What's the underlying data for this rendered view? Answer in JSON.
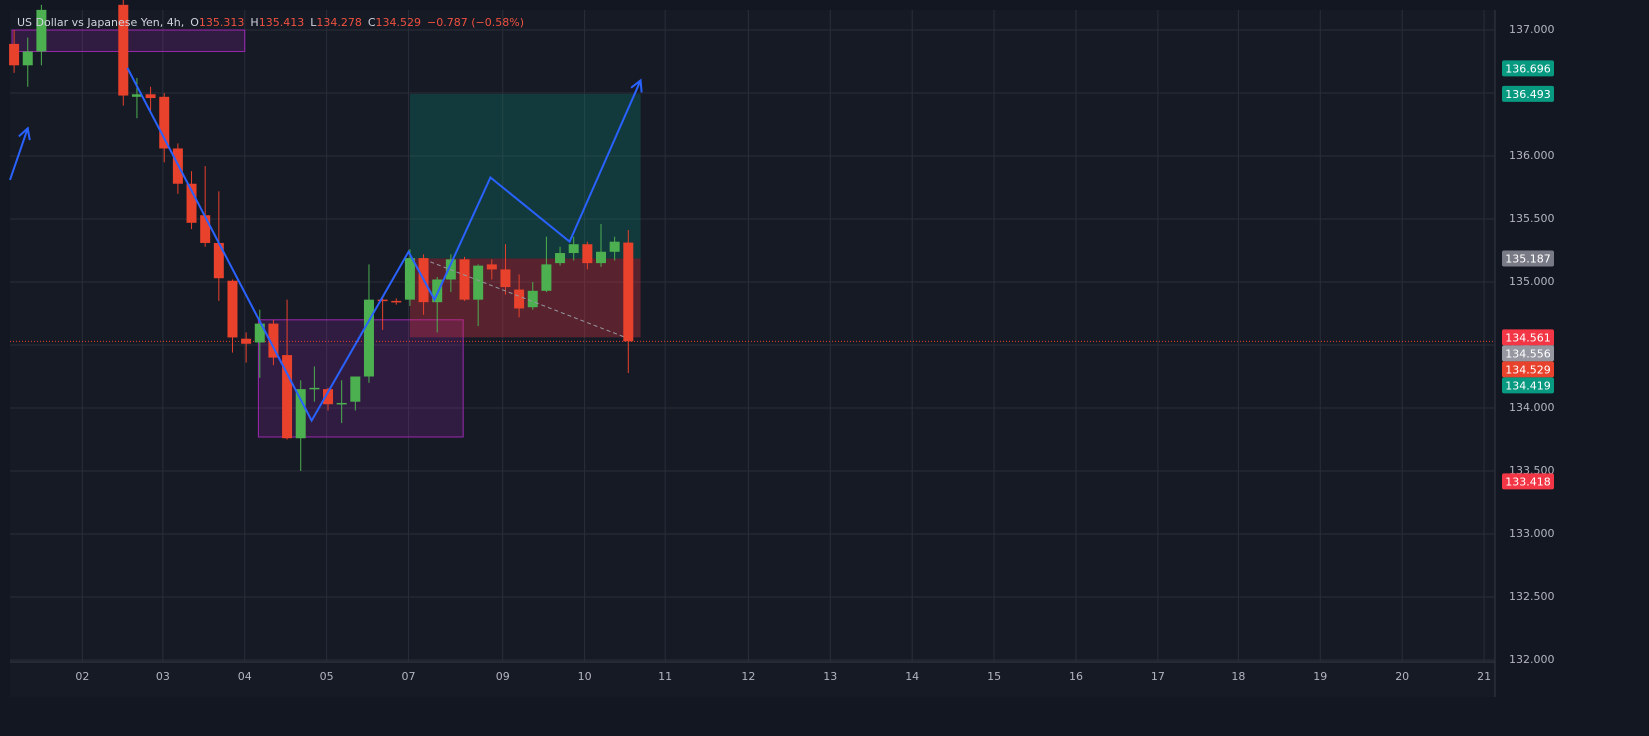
{
  "chart_data": {
    "type": "candlestick",
    "title": "US Dollar vs Japanese Yen, 4h,",
    "ohlc_legend": [
      {
        "label": "O",
        "value": 135.313
      },
      {
        "label": "H",
        "value": 135.413
      },
      {
        "label": "L",
        "value": 134.278
      },
      {
        "label": "C",
        "value": 134.529
      }
    ],
    "change": "−0.787 (−0.58%)",
    "x": [
      0,
      1,
      2,
      8,
      9,
      10,
      11,
      12,
      13,
      14,
      15,
      16,
      17,
      18,
      19,
      20,
      21,
      22,
      23,
      24,
      25,
      26,
      27,
      28,
      29,
      30,
      31,
      32,
      33,
      34,
      35,
      36,
      37,
      38,
      39,
      40,
      41,
      42,
      43,
      44,
      45
    ],
    "open": [
      136.89,
      136.72,
      136.83,
      137.2,
      136.47,
      136.49,
      136.47,
      136.06,
      135.78,
      135.53,
      135.31,
      135.01,
      134.55,
      134.52,
      134.67,
      134.42,
      133.76,
      134.15,
      134.15,
      134.03,
      134.05,
      134.25,
      134.86,
      134.85,
      134.86,
      135.19,
      134.84,
      135.02,
      135.18,
      134.86,
      135.14,
      135.1,
      134.94,
      134.8,
      134.93,
      135.15,
      135.23,
      135.3,
      135.15,
      135.24,
      135.313
    ],
    "high": [
      137.0,
      136.94,
      137.2,
      137.3,
      136.62,
      136.55,
      136.5,
      136.1,
      135.88,
      135.92,
      135.72,
      135.02,
      134.6,
      134.78,
      134.7,
      134.86,
      134.22,
      134.33,
      134.16,
      134.22,
      134.25,
      135.14,
      134.88,
      134.87,
      135.26,
      135.22,
      135.04,
      135.22,
      135.2,
      135.14,
      135.18,
      135.3,
      135.06,
      135.0,
      135.36,
      135.28,
      135.36,
      135.32,
      135.46,
      135.36,
      135.413
    ],
    "low": [
      136.66,
      136.55,
      136.72,
      136.4,
      136.3,
      136.36,
      135.95,
      135.7,
      135.42,
      135.28,
      134.85,
      134.44,
      134.36,
      134.24,
      134.34,
      133.75,
      133.5,
      134.05,
      133.98,
      133.88,
      133.98,
      134.2,
      134.62,
      134.82,
      134.81,
      134.74,
      134.6,
      134.92,
      134.85,
      134.65,
      135.02,
      134.9,
      134.72,
      134.78,
      134.92,
      135.13,
      135.17,
      135.1,
      135.12,
      135.17,
      134.278
    ],
    "close": [
      136.72,
      136.83,
      137.16,
      136.48,
      136.49,
      136.46,
      136.06,
      135.78,
      135.47,
      135.31,
      135.03,
      134.56,
      134.51,
      134.67,
      134.4,
      133.76,
      134.15,
      134.16,
      134.03,
      134.04,
      134.25,
      134.86,
      134.85,
      134.84,
      135.19,
      134.84,
      135.02,
      135.18,
      134.86,
      135.13,
      135.1,
      134.96,
      134.79,
      134.93,
      135.14,
      135.23,
      135.3,
      135.15,
      135.24,
      135.32,
      134.529
    ],
    "colors": {
      "up": "#4caf50",
      "down": "#e8412c"
    },
    "xlim": [
      -0.3,
      108.5
    ],
    "xticks": [
      {
        "value": 5,
        "label": "02"
      },
      {
        "value": 10.9,
        "label": "03"
      },
      {
        "value": 16.9,
        "label": "04"
      },
      {
        "value": 22.9,
        "label": "05"
      },
      {
        "value": 28.9,
        "label": "07"
      },
      {
        "value": 35.8,
        "label": "09"
      },
      {
        "value": 41.8,
        "label": "10"
      },
      {
        "value": 47.7,
        "label": "11"
      },
      {
        "value": 53.8,
        "label": "12"
      },
      {
        "value": 59.8,
        "label": "13"
      },
      {
        "value": 65.8,
        "label": "14"
      },
      {
        "value": 71.8,
        "label": "15"
      },
      {
        "value": 77.8,
        "label": "16"
      },
      {
        "value": 83.8,
        "label": "17"
      },
      {
        "value": 89.7,
        "label": "18"
      },
      {
        "value": 95.7,
        "label": "19"
      },
      {
        "value": 101.7,
        "label": "20"
      },
      {
        "value": 107.7,
        "label": "21"
      }
    ],
    "ylim": [
      131.984,
      137.159
    ],
    "yticks": [
      {
        "value": 132,
        "label": "132.000"
      },
      {
        "value": 132.5,
        "label": "132.500"
      },
      {
        "value": 133,
        "label": "133.000"
      },
      {
        "value": 133.5,
        "label": "133.500"
      },
      {
        "value": 134,
        "label": "134.000"
      },
      {
        "value": 134.5,
        "label": "134.500"
      },
      {
        "value": 135,
        "label": "135.000"
      },
      {
        "value": 135.5,
        "label": "135.500"
      },
      {
        "value": 136,
        "label": "136.000"
      },
      {
        "value": 136.5,
        "label": "136.500"
      },
      {
        "value": 137,
        "label": "137.000"
      }
    ],
    "grid": true,
    "price_tags": [
      {
        "value": 136.696,
        "color": "#089981"
      },
      {
        "value": 136.493,
        "color": "#089981"
      },
      {
        "value": 135.187,
        "color": "#787b86"
      },
      {
        "value": 134.561,
        "color": "#f23645"
      },
      {
        "value": 134.556,
        "color": "#9598a1"
      },
      {
        "value": 134.529,
        "color": "#e8412c"
      },
      {
        "value": 134.419,
        "color": "#089981"
      },
      {
        "value": 133.418,
        "color": "#f23645"
      }
    ],
    "boxes": [
      {
        "x": [
          -0.15,
          16.9
        ],
        "y": [
          136.83,
          137.0
        ]
      },
      {
        "x": [
          17.9,
          32.9
        ],
        "y": [
          133.77,
          134.7
        ]
      }
    ],
    "position": {
      "x": [
        29,
        45.9
      ],
      "target": 136.493,
      "entry": 135.187,
      "stop": 134.561
    },
    "paths": [
      {
        "x": [
          -0.3,
          1.0
        ],
        "y": [
          135.81,
          136.22
        ]
      },
      {
        "x": [
          8.3,
          21.8,
          28.9,
          30.8,
          34.9,
          40.7,
          45.9
        ],
        "y": [
          136.7,
          133.9,
          135.24,
          134.86,
          135.83,
          135.32,
          136.6
        ]
      }
    ],
    "dashed": {
      "x": [
        30.5,
        44.8
      ],
      "y": [
        135.16,
        134.56
      ]
    }
  }
}
